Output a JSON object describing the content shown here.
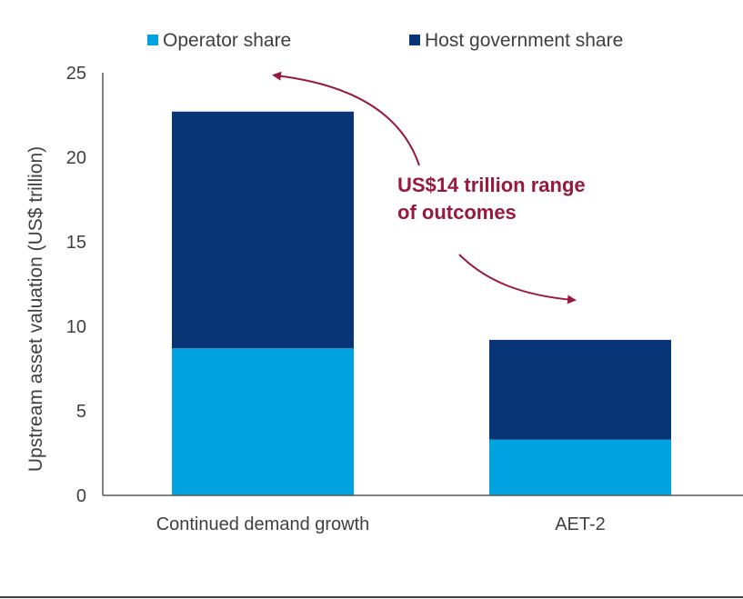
{
  "chart_data": {
    "type": "stacked-bar",
    "categories": [
      "Continued demand growth",
      "AET-2"
    ],
    "series": [
      {
        "name": "Operator share",
        "color": "#00a3e0",
        "values": [
          8.7,
          3.3
        ]
      },
      {
        "name": "Host government share",
        "color": "#083575",
        "values": [
          14.0,
          5.9
        ]
      }
    ],
    "ylabel": "Upstream asset valuation (US$ trillion)",
    "ylim": [
      0,
      25
    ],
    "yticks": [
      "0",
      "5",
      "10",
      "15",
      "20",
      "25"
    ],
    "legend": "top",
    "grid": false,
    "annotation": {
      "lines": [
        "US$14 trillion range",
        "of outcomes"
      ],
      "color": "#98193b"
    }
  }
}
